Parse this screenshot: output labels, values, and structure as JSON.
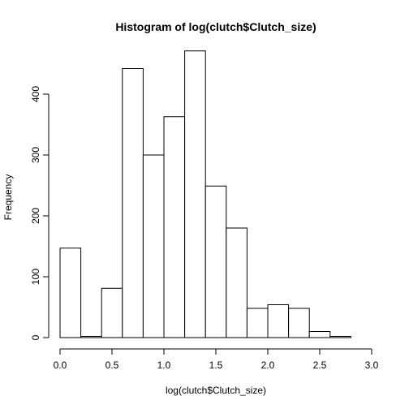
{
  "chart_data": {
    "type": "histogram",
    "title": "Histogram of log(clutch$Clutch_size)",
    "xlabel": "log(clutch$Clutch_size)",
    "ylabel": "Frequency",
    "bins": [
      {
        "x0": 0.0,
        "x1": 0.2,
        "count": 147
      },
      {
        "x0": 0.2,
        "x1": 0.4,
        "count": 2
      },
      {
        "x0": 0.4,
        "x1": 0.6,
        "count": 81
      },
      {
        "x0": 0.6,
        "x1": 0.8,
        "count": 442
      },
      {
        "x0": 0.8,
        "x1": 1.0,
        "count": 300
      },
      {
        "x0": 1.0,
        "x1": 1.2,
        "count": 363
      },
      {
        "x0": 1.2,
        "x1": 1.4,
        "count": 471
      },
      {
        "x0": 1.4,
        "x1": 1.6,
        "count": 249
      },
      {
        "x0": 1.6,
        "x1": 1.8,
        "count": 180
      },
      {
        "x0": 1.8,
        "x1": 2.0,
        "count": 48
      },
      {
        "x0": 2.0,
        "x1": 2.2,
        "count": 54
      },
      {
        "x0": 2.2,
        "x1": 2.4,
        "count": 48
      },
      {
        "x0": 2.4,
        "x1": 2.6,
        "count": 10
      },
      {
        "x0": 2.6,
        "x1": 2.8,
        "count": 2
      },
      {
        "x0": 2.8,
        "x1": 3.0,
        "count": 0
      }
    ],
    "xlim": [
      0.0,
      3.0
    ],
    "ylim": [
      0,
      480
    ],
    "xticks": [
      {
        "value": 0.0,
        "label": "0.0"
      },
      {
        "value": 0.5,
        "label": "0.5"
      },
      {
        "value": 1.0,
        "label": "1.0"
      },
      {
        "value": 1.5,
        "label": "1.5"
      },
      {
        "value": 2.0,
        "label": "2.0"
      },
      {
        "value": 2.5,
        "label": "2.5"
      },
      {
        "value": 3.0,
        "label": "3.0"
      }
    ],
    "yticks": [
      {
        "value": 0,
        "label": "0"
      },
      {
        "value": 100,
        "label": "100"
      },
      {
        "value": 200,
        "label": "200"
      },
      {
        "value": 300,
        "label": "300"
      },
      {
        "value": 400,
        "label": "400"
      }
    ],
    "grid": false,
    "legend": "none",
    "colors": {
      "bar_fill": "#ffffff",
      "bar_stroke": "#000000"
    }
  }
}
